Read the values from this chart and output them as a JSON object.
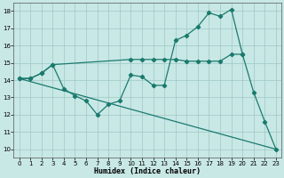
{
  "xlabel": "Humidex (Indice chaleur)",
  "background_color": "#c8e8e5",
  "grid_color": "#9ec8c5",
  "line_color": "#1a7a6e",
  "series1_x": [
    0,
    1,
    2,
    3,
    4,
    5,
    6,
    7,
    8,
    9,
    10,
    11,
    12,
    13,
    14,
    15,
    16,
    17,
    18,
    19,
    20,
    21,
    22,
    23
  ],
  "series1_y": [
    14.1,
    14.1,
    14.4,
    14.9,
    13.5,
    13.1,
    12.8,
    12.0,
    12.6,
    12.8,
    14.3,
    14.2,
    13.7,
    13.7,
    16.3,
    16.6,
    17.1,
    17.9,
    17.7,
    18.1,
    15.5,
    13.3,
    11.6,
    10.0
  ],
  "series2_x": [
    0,
    1,
    2,
    3,
    10,
    11,
    12,
    13,
    14,
    15,
    16,
    17,
    18,
    19,
    20
  ],
  "series2_y": [
    14.1,
    14.1,
    14.4,
    14.9,
    15.2,
    15.2,
    15.2,
    15.2,
    15.2,
    15.1,
    15.1,
    15.1,
    15.1,
    15.5,
    15.5
  ],
  "series3_x": [
    0,
    23
  ],
  "series3_y": [
    14.1,
    10.0
  ],
  "xlim": [
    -0.5,
    23.5
  ],
  "ylim": [
    9.5,
    18.5
  ],
  "yticks": [
    10,
    11,
    12,
    13,
    14,
    15,
    16,
    17,
    18
  ],
  "xticks": [
    0,
    1,
    2,
    3,
    4,
    5,
    6,
    7,
    8,
    9,
    10,
    11,
    12,
    13,
    14,
    15,
    16,
    17,
    18,
    19,
    20,
    21,
    22,
    23
  ]
}
